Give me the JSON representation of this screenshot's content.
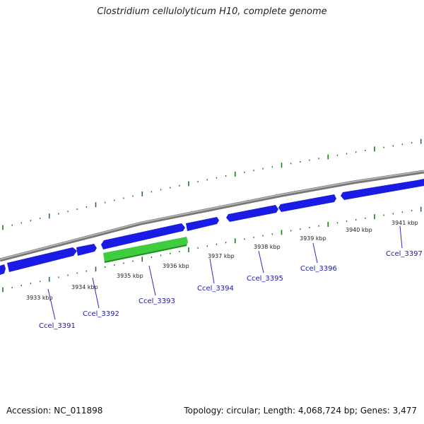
{
  "title": "Clostridium cellulolyticum H10, complete genome",
  "footer": {
    "accession": "Accession: NC_011898",
    "stats": "Topology: circular; Length: 4,068,724 bp; Genes: 3,477"
  },
  "colors": {
    "backbone": "#8a8a8a",
    "gene_forward": "#1b1be6",
    "gene_highlight": "#3fcc3f",
    "tick": "#1f7a1f",
    "label": "#1a1aa6"
  },
  "kbp_labels": [
    "3933 kbp",
    "3934 kbp",
    "3935 kbp",
    "3936 kbp",
    "3937 kbp",
    "3938 kbp",
    "3939 kbp",
    "3940 kbp",
    "3941 kbp"
  ],
  "genes": [
    {
      "name": "Ccel_3391"
    },
    {
      "name": "Ccel_3392"
    },
    {
      "name": "Ccel_3393"
    },
    {
      "name": "Ccel_3394"
    },
    {
      "name": "Ccel_3395"
    },
    {
      "name": "Ccel_3396"
    },
    {
      "name": "Ccel_3397"
    }
  ]
}
